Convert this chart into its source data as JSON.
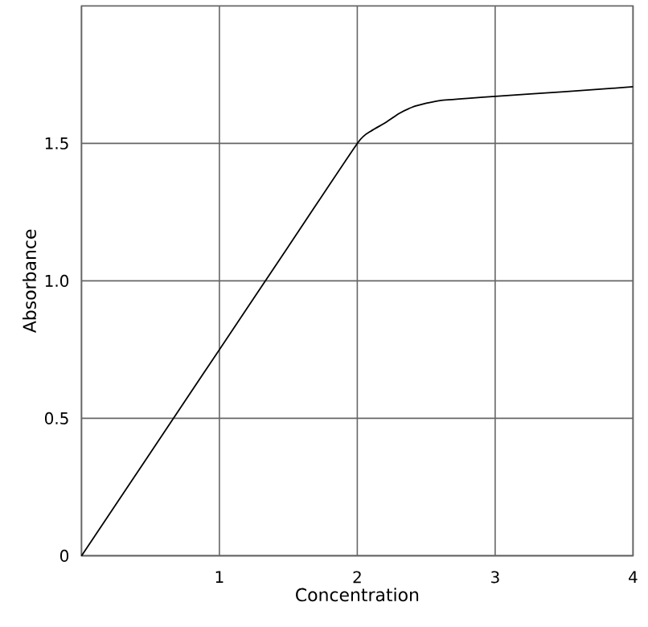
{
  "chart_data": {
    "type": "line",
    "xlabel": "Concentration",
    "ylabel": "Absorbance",
    "x": [
      0,
      0.5,
      1,
      1.5,
      2,
      2.1,
      2.2,
      2.3,
      2.4,
      2.5,
      2.6,
      2.8,
      3,
      3.5,
      4
    ],
    "series": [
      {
        "color": "#000000",
        "values": [
          0,
          0.375,
          0.75,
          1.125,
          1.5,
          1.545,
          1.574,
          1.608,
          1.632,
          1.646,
          1.656,
          1.664,
          1.671,
          1.688,
          1.706
        ]
      }
    ],
    "xlim": [
      0,
      4
    ],
    "ylim": [
      0,
      2
    ],
    "xticks": [
      {
        "value": 0,
        "label": null
      },
      1,
      2,
      3,
      4
    ],
    "yticks": [
      0,
      0.5,
      {
        "value": 1,
        "label": "1.0"
      },
      1.5
    ],
    "grid": true,
    "marker": "none",
    "line_style": "solid"
  }
}
